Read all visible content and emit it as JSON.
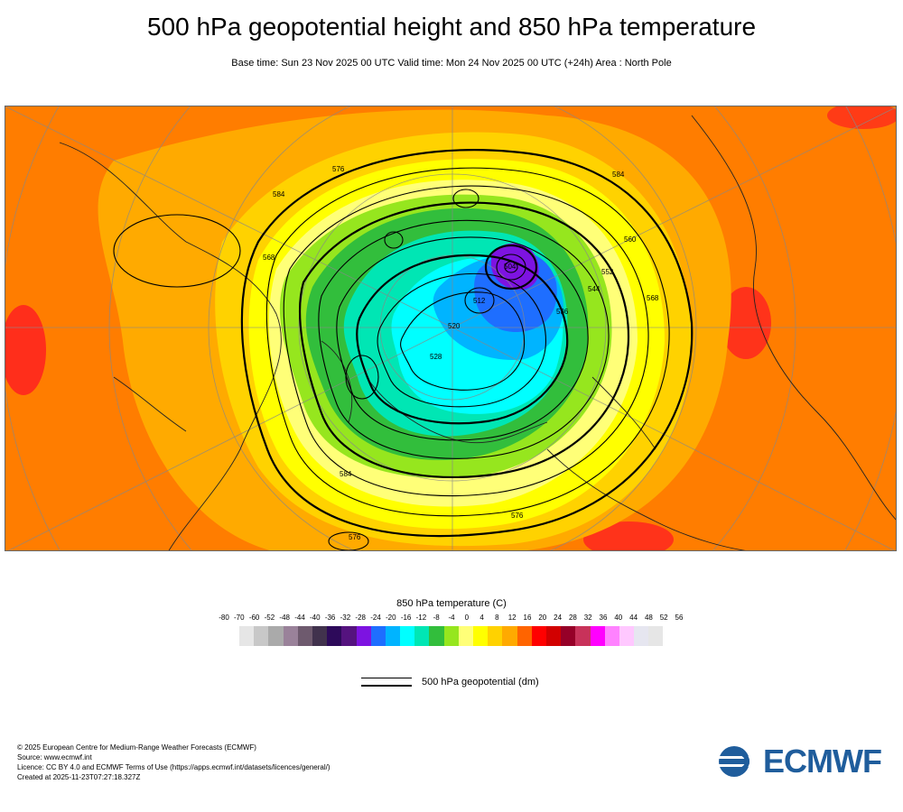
{
  "header": {
    "title": "500 hPa geopotential height and 850 hPa temperature",
    "subtitle": "Base time: Sun 23 Nov 2025 00 UTC Valid time: Mon 24 Nov 2025 00 UTC (+24h) Area : North Pole"
  },
  "map": {
    "contour_labels": [
      "584",
      "576",
      "568",
      "584",
      "576",
      "584",
      "576",
      "568",
      "504",
      "512",
      "520",
      "528",
      "536",
      "544",
      "552",
      "560"
    ]
  },
  "legend": {
    "title": "850 hPa temperature (C)",
    "ticks": [
      "-80",
      "-70",
      "-60",
      "-52",
      "-48",
      "-44",
      "-40",
      "-36",
      "-32",
      "-28",
      "-24",
      "-20",
      "-16",
      "-12",
      "-8",
      "-4",
      "0",
      "4",
      "8",
      "12",
      "16",
      "20",
      "24",
      "28",
      "32",
      "36",
      "40",
      "44",
      "48",
      "52",
      "56"
    ],
    "colors": [
      "#e6e6e6",
      "#c8c8c8",
      "#aaaaaa",
      "#9a829a",
      "#6e5a6e",
      "#41324d",
      "#2d0a5a",
      "#55137f",
      "#7d13e1",
      "#1e6eff",
      "#00b4ff",
      "#00ffff",
      "#00e6b4",
      "#32be3c",
      "#96e61e",
      "#ffff78",
      "#ffff00",
      "#ffd200",
      "#ffaa00",
      "#ff6400",
      "#ff0000",
      "#d20000",
      "#960028",
      "#c8325a",
      "#ff00ff",
      "#ff82ff",
      "#ffc8ff",
      "#e6e6f0",
      "#e6e6e6"
    ],
    "line_label": "500 hPa geopotential (dm)"
  },
  "credits": {
    "line1": "© 2025 European Centre for Medium-Range Weather Forecasts (ECMWF)",
    "line2": "Source: www.ecmwf.int",
    "line3": "Licence: CC BY 4.0 and ECMWF Terms of Use (https://apps.ecmwf.int/datasets/licences/general/)",
    "line4": "Created at 2025-11-23T07:27:18.327Z"
  },
  "logo": {
    "text": "ECMWF",
    "color": "#1f5d9c"
  }
}
